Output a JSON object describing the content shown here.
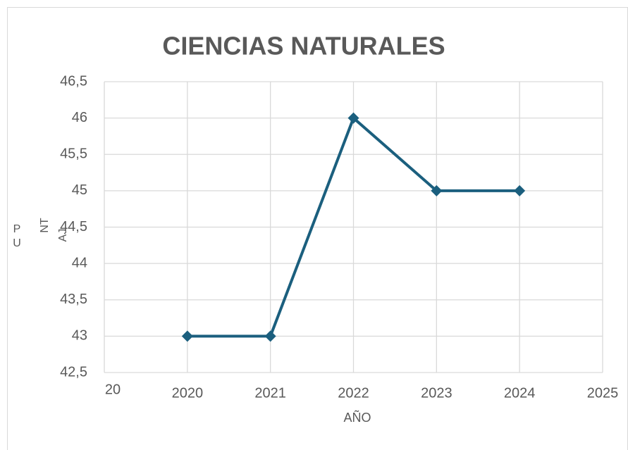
{
  "chart_data": {
    "type": "line",
    "title": "CIENCIAS NATURALES",
    "x_label": "AÑO",
    "y_label_lines": [
      "P",
      "U",
      "NT",
      "AJ"
    ],
    "x": [
      2020,
      2021,
      2022,
      2023,
      2024
    ],
    "values": [
      43,
      43,
      46,
      45,
      45
    ],
    "color": "#1b5f7e",
    "xlim": [
      2019,
      2025
    ],
    "xticks": [
      {
        "value": 2019,
        "label": "20"
      },
      2020,
      2021,
      2022,
      2023,
      2024,
      2025
    ],
    "ylim": [
      42.5,
      46.5
    ],
    "yticks": [
      {
        "value": 42.5,
        "label": "42,5"
      },
      43,
      {
        "value": 43.5,
        "label": "43,5"
      },
      44,
      {
        "value": 44.5,
        "label": "44,5"
      },
      45,
      {
        "value": 45.5,
        "label": "45,5"
      },
      46,
      {
        "value": 46.5,
        "label": "46,5"
      }
    ],
    "grid": true
  }
}
